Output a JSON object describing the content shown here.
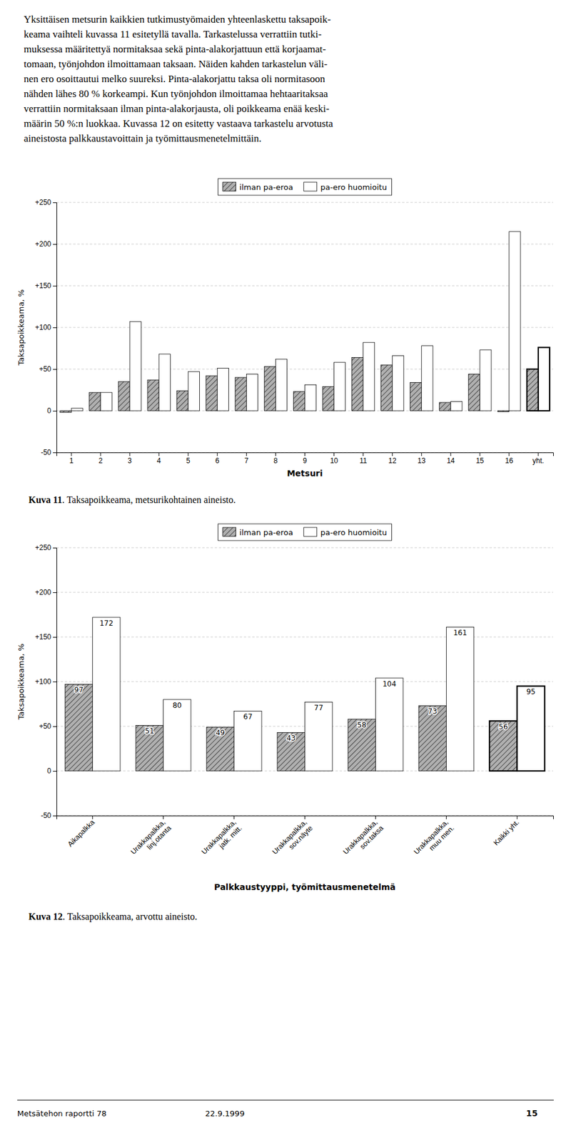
{
  "chart_data": [
    {
      "type": "bar",
      "categories": [
        "1",
        "2",
        "3",
        "4",
        "5",
        "6",
        "7",
        "8",
        "9",
        "10",
        "11",
        "12",
        "13",
        "14",
        "15",
        "16",
        "yht."
      ],
      "series": [
        {
          "name": "ilman pa-eroa",
          "color": "#b0b0b0",
          "values": [
            -2,
            22,
            35,
            37,
            24,
            42,
            40,
            53,
            23,
            29,
            64,
            55,
            34,
            10,
            44,
            -1,
            50
          ]
        },
        {
          "name": "pa-ero huomioitu",
          "color": "#ffffff",
          "values": [
            3,
            22,
            107,
            68,
            47,
            51,
            44,
            62,
            31,
            58,
            82,
            66,
            78,
            11,
            73,
            215,
            76
          ]
        }
      ],
      "ylim": [
        -50,
        250
      ],
      "yticks": [
        -50,
        0,
        {
          "value": 50,
          "label": "+50"
        },
        {
          "value": 100,
          "label": "+100"
        },
        {
          "value": 150,
          "label": "+150"
        },
        {
          "value": 200,
          "label": "+200"
        },
        {
          "value": 250,
          "label": "+250"
        }
      ],
      "ylabel": "Taksapoikkeama, %",
      "xlabel": "Metsuri",
      "grid": true,
      "legend": "top"
    },
    {
      "type": "bar",
      "categories": [
        "Aikapalkka",
        "Urakkapalkka,\nlinj.otanta",
        "Urakkapalkka,\njatk. mitt.",
        "Urakkapalkka,\nsov.näyte",
        "Urakkapalkka,\nsov.taksa",
        "Urakkapalkka,\nmuu men.",
        "Kaikki yht."
      ],
      "series": [
        {
          "name": "ilman pa-eroa",
          "color": "#b0b0b0",
          "values": [
            97,
            51,
            49,
            43,
            58,
            73,
            56
          ]
        },
        {
          "name": "pa-ero huomioitu",
          "color": "#ffffff",
          "values": [
            172,
            80,
            67,
            77,
            104,
            161,
            95
          ]
        }
      ],
      "ylim": [
        -50,
        250
      ],
      "yticks": [
        -50,
        0,
        {
          "value": 50,
          "label": "+50"
        },
        {
          "value": 100,
          "label": "+100"
        },
        {
          "value": 150,
          "label": "+150"
        },
        {
          "value": 200,
          "label": "+200"
        },
        {
          "value": 250,
          "label": "+250"
        }
      ],
      "ylabel": "Taksapoikkeama, %",
      "xlabel": "Palkkaustyyppi, työmittausmenetelmä",
      "grid": true,
      "legend": "top",
      "data_labels": true
    }
  ],
  "text_lines": [
    "Yksittäisen metsurin kaikkien tutkimustyömaiden yhteenlaskettu taksapoik-",
    "keama vaihteli kuvassa 11 esitetyllä tavalla. Tarkastelussa verrattiin tutki-",
    "muksessa määritettyä normitaksaa sekä pinta-alakorjattuun että korjaamat-",
    "tomaan, työnjohdon ilmoittamaan taksaan. Näiden kahden tarkastelun väli-",
    "nen ero osoittautui melko suureksi. Pinta-alakorjattu taksa oli normitasoon",
    "nähden lähes 80 % korkeampi. Kun työnjohdon ilmoittamaa hehtaaritaksaa",
    "verrattiin normitaksaan ilman pinta-alakorjausta, oli poikkeama enää keski-",
    "määrin 50 %:n luokkaa. Kuvassa 12 on esitetty vastaava tarkastelu arvotusta",
    "aineistosta palkkaustavoittain ja työmittausmenetelmittäin."
  ],
  "captions": [
    {
      "bold": "Kuva 11",
      "rest": ". Taksapoikkeama, metsurikohtainen aineisto."
    },
    {
      "bold": "Kuva 12",
      "rest": ". Taksapoikkeama, arvottu aineisto."
    }
  ],
  "footer": {
    "left": "Metsätehon raportti 78",
    "center": "22.9.1999",
    "right": "15"
  }
}
